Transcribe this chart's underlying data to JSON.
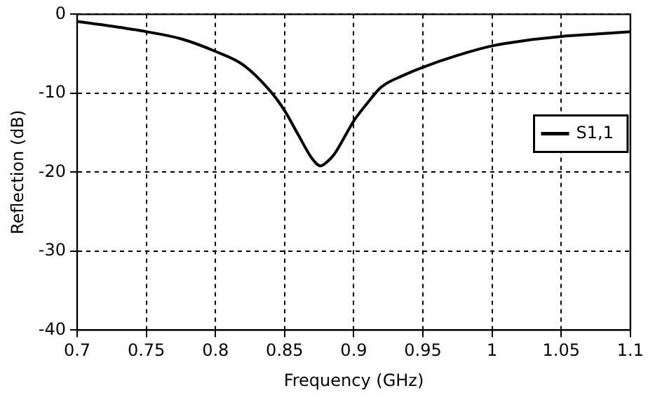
{
  "chart_data": {
    "type": "line",
    "xlabel": "Frequency (GHz)",
    "ylabel": "Reflection (dB)",
    "x": [
      0.7,
      0.725,
      0.75,
      0.775,
      0.8,
      0.82,
      0.84,
      0.85,
      0.86,
      0.87,
      0.876,
      0.88,
      0.886,
      0.895,
      0.9,
      0.91,
      0.92,
      0.935,
      0.95,
      0.975,
      1.0,
      1.025,
      1.05,
      1.075,
      1.1
    ],
    "series": [
      {
        "name": "S1,1",
        "color": "#000000",
        "values": [
          -0.9,
          -1.5,
          -2.2,
          -3.1,
          -4.7,
          -6.4,
          -9.8,
          -12.2,
          -15.3,
          -18.3,
          -19.2,
          -18.8,
          -17.7,
          -15,
          -13.5,
          -11.2,
          -9.2,
          -7.8,
          -6.7,
          -5.2,
          -4.0,
          -3.3,
          -2.8,
          -2.5,
          -2.2
        ]
      }
    ],
    "xlim": [
      0.7,
      1.1
    ],
    "xticks": [
      0.7,
      0.75,
      0.8,
      0.85,
      0.9,
      0.95,
      1,
      1.05,
      1.1
    ],
    "ylim": [
      -40,
      0
    ],
    "yticks": [
      -40,
      -30,
      -20,
      -10,
      0
    ],
    "grid": true,
    "legend": "right",
    "marker": "none",
    "line_style": "solid"
  }
}
